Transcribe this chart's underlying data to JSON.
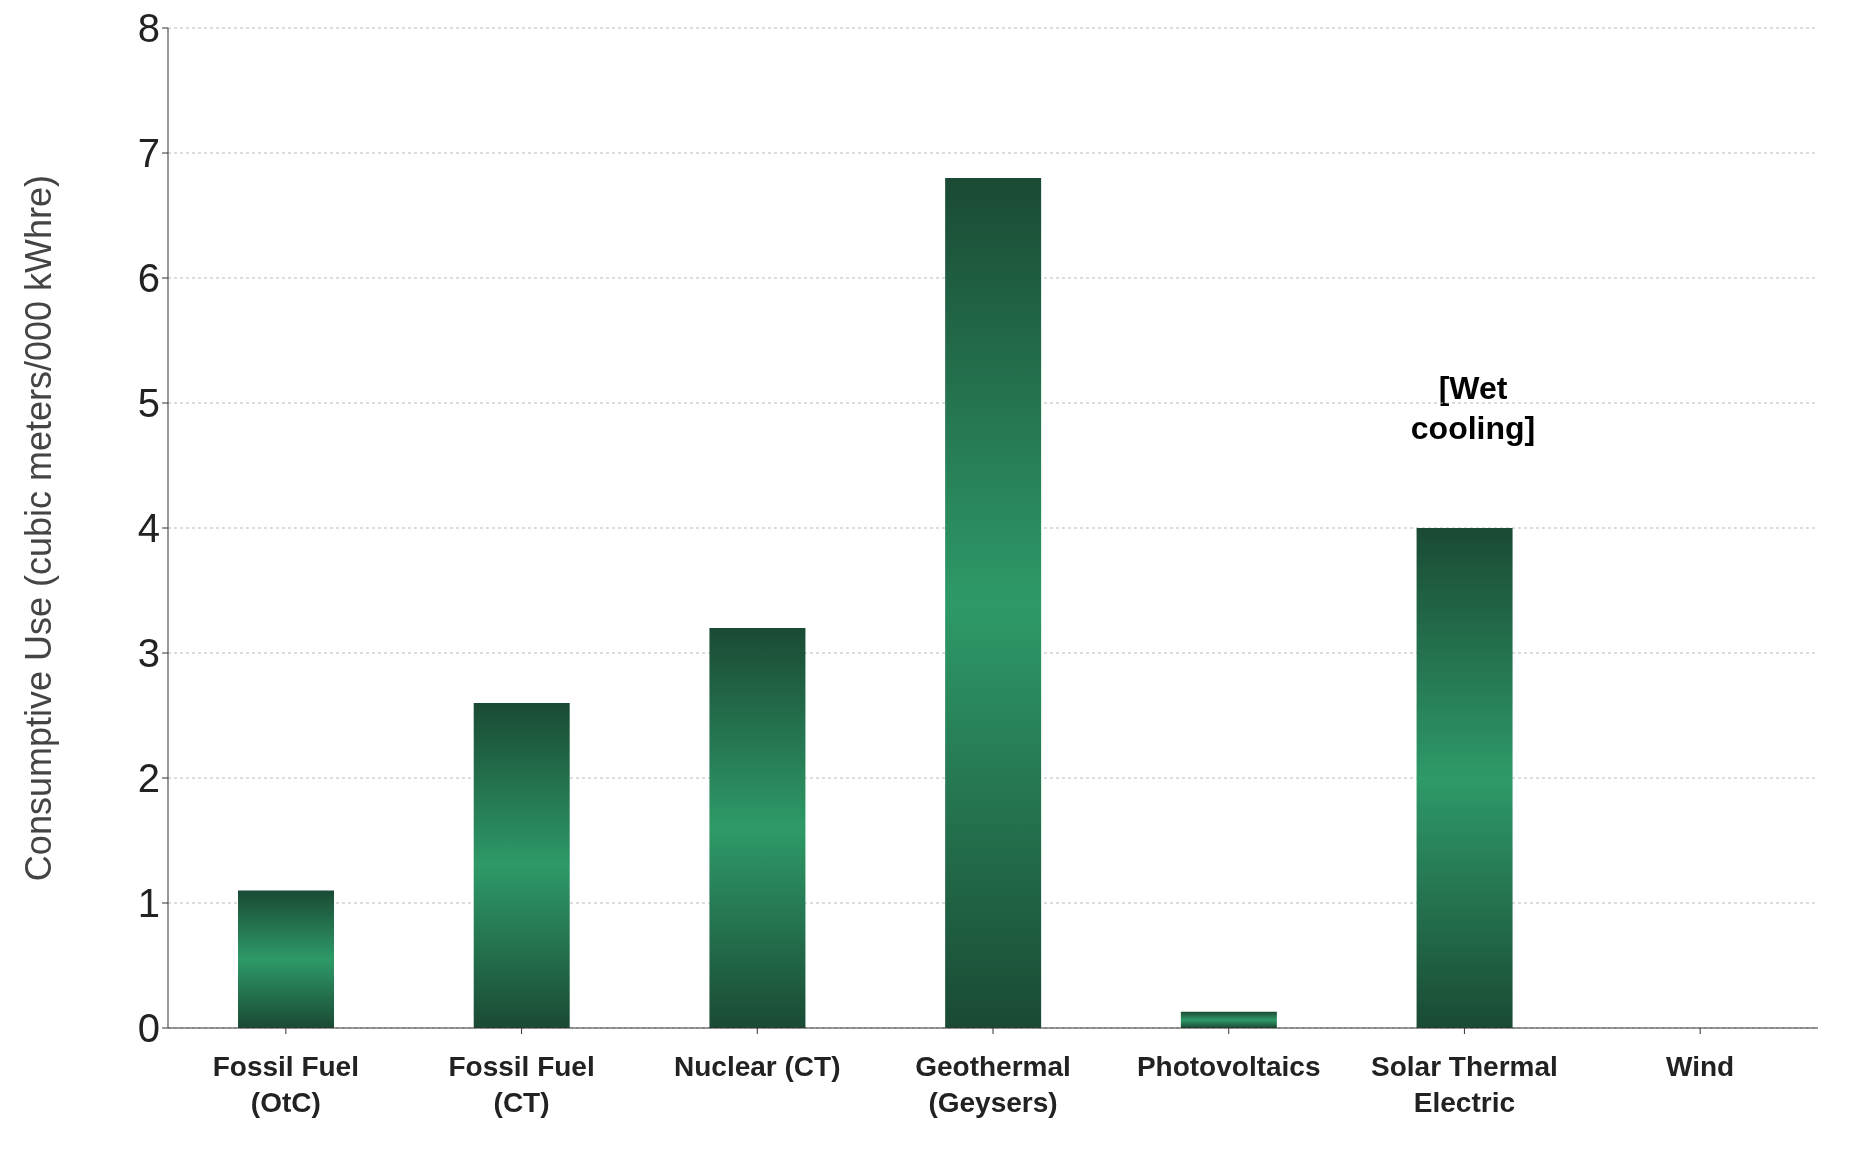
{
  "chart_data": {
    "type": "bar",
    "ylabel": "Consumptive Use (cubic meters/000 kWhre)",
    "categories": [
      "Fossil Fuel (OtC)",
      "Fossil Fuel (CT)",
      "Nuclear (CT)",
      "Geothermal (Geysers)",
      "Photovoltaics",
      "Solar Thermal Electric",
      "Wind"
    ],
    "values": [
      1.1,
      2.6,
      3.2,
      6.8,
      0.13,
      4.0,
      0
    ],
    "color": "#2e9a68",
    "ylim": [
      0,
      8
    ],
    "yticks": [
      0,
      1,
      2,
      3,
      4,
      5,
      6,
      7,
      8
    ],
    "grid": "y",
    "annotations": [
      "[Wet cooling]"
    ]
  }
}
